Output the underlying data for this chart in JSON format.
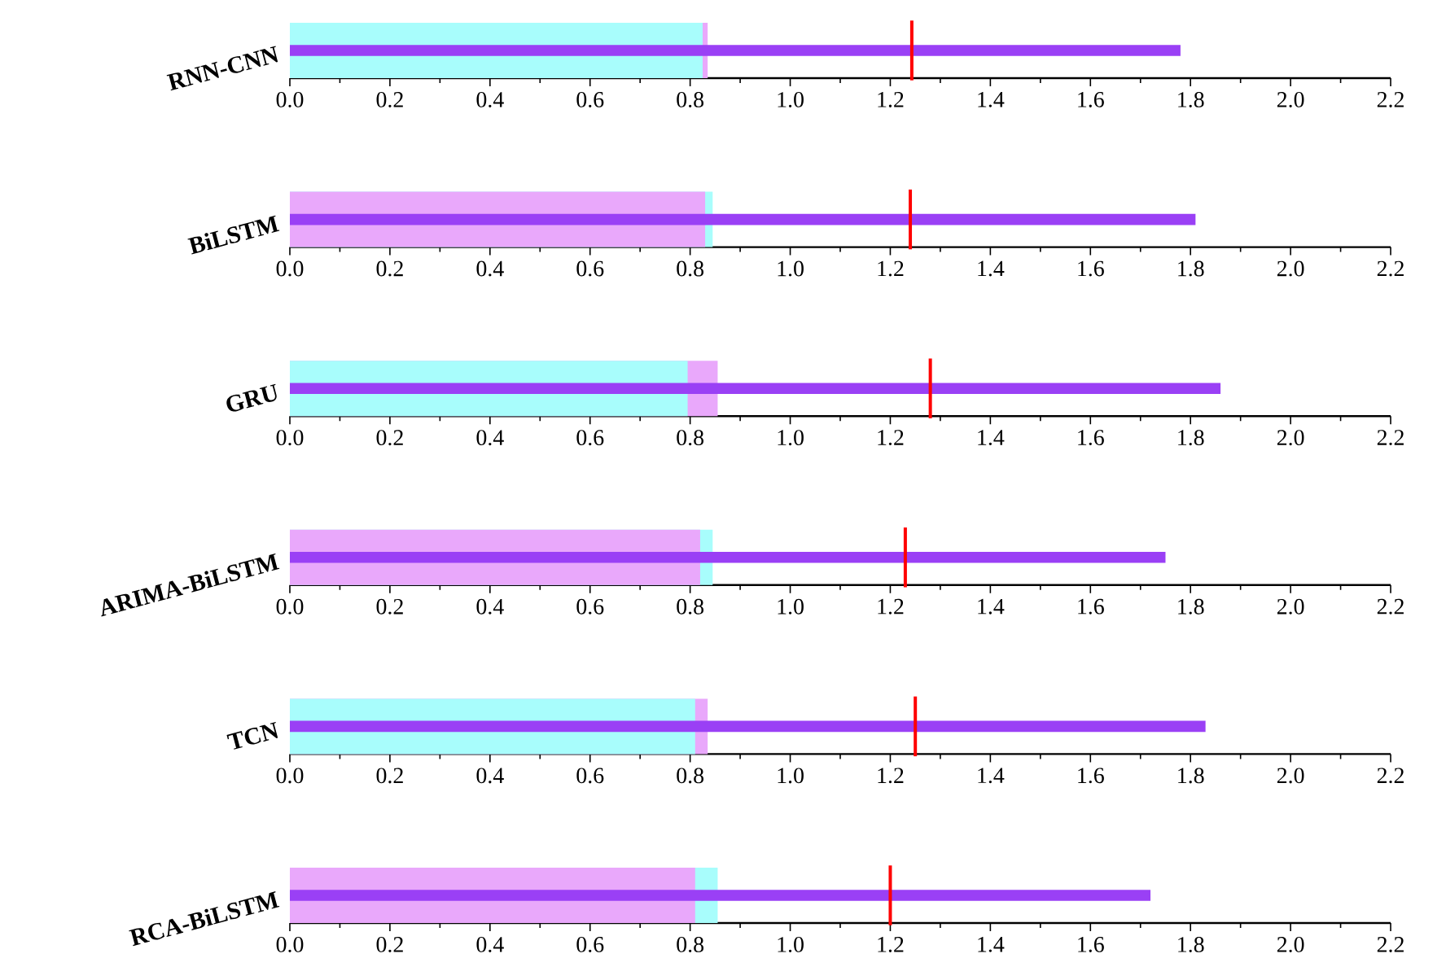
{
  "chart_data": [
    {
      "type": "bar",
      "orientation": "horizontal",
      "categories": [
        "RNN-CNN"
      ],
      "values": [
        1.78
      ],
      "color": "#9a40f5",
      "xlim": [
        0,
        2.2
      ],
      "xticks": [
        {
          "value": 0,
          "label": "0.0"
        },
        0.2,
        0.4,
        0.6,
        0.8,
        {
          "value": 1,
          "label": "1.0"
        },
        1.2,
        1.4,
        1.6,
        1.8,
        {
          "value": 2,
          "label": "2.0"
        },
        2.2
      ],
      "bands": [
        {
          "axis": "x",
          "from": 0,
          "to": 0.835,
          "color": "#e9a8fb"
        },
        {
          "axis": "x",
          "from": 0,
          "to": 0.825,
          "color": "#a8fdfc"
        }
      ],
      "ref_lines": [
        {
          "axis": "x",
          "value": 1.243,
          "color": "#ff0000"
        }
      ]
    },
    {
      "type": "bar",
      "orientation": "horizontal",
      "categories": [
        "BiLSTM"
      ],
      "values": [
        1.81
      ],
      "color": "#9a40f5",
      "xlim": [
        0,
        2.2
      ],
      "xticks": [
        {
          "value": 0,
          "label": "0.0"
        },
        0.2,
        0.4,
        0.6,
        0.8,
        {
          "value": 1,
          "label": "1.0"
        },
        1.2,
        1.4,
        1.6,
        1.8,
        {
          "value": 2,
          "label": "2.0"
        },
        2.2
      ],
      "bands": [
        {
          "axis": "x",
          "from": 0,
          "to": 0.845,
          "color": "#a8fdfc"
        },
        {
          "axis": "x",
          "from": 0,
          "to": 0.83,
          "color": "#e9a8fb"
        }
      ],
      "ref_lines": [
        {
          "axis": "x",
          "value": 1.24,
          "color": "#ff0000"
        }
      ]
    },
    {
      "type": "bar",
      "orientation": "horizontal",
      "categories": [
        "GRU"
      ],
      "values": [
        1.86
      ],
      "color": "#9a40f5",
      "xlim": [
        0,
        2.2
      ],
      "xticks": [
        {
          "value": 0,
          "label": "0.0"
        },
        0.2,
        0.4,
        0.6,
        0.8,
        {
          "value": 1,
          "label": "1.0"
        },
        1.2,
        1.4,
        1.6,
        1.8,
        {
          "value": 2,
          "label": "2.0"
        },
        2.2
      ],
      "bands": [
        {
          "axis": "x",
          "from": 0,
          "to": 0.855,
          "color": "#e9a8fb"
        },
        {
          "axis": "x",
          "from": 0,
          "to": 0.795,
          "color": "#a8fdfc"
        }
      ],
      "ref_lines": [
        {
          "axis": "x",
          "value": 1.28,
          "color": "#ff0000"
        }
      ]
    },
    {
      "type": "bar",
      "orientation": "horizontal",
      "categories": [
        "ARIMA-BiLSTM"
      ],
      "values": [
        1.75
      ],
      "color": "#9a40f5",
      "xlim": [
        0,
        2.2
      ],
      "xticks": [
        {
          "value": 0,
          "label": "0.0"
        },
        0.2,
        0.4,
        0.6,
        0.8,
        {
          "value": 1,
          "label": "1.0"
        },
        1.2,
        1.4,
        1.6,
        1.8,
        {
          "value": 2,
          "label": "2.0"
        },
        2.2
      ],
      "bands": [
        {
          "axis": "x",
          "from": 0,
          "to": 0.845,
          "color": "#a8fdfc"
        },
        {
          "axis": "x",
          "from": 0,
          "to": 0.82,
          "color": "#e9a8fb"
        }
      ],
      "ref_lines": [
        {
          "axis": "x",
          "value": 1.23,
          "color": "#ff0000"
        }
      ]
    },
    {
      "type": "bar",
      "orientation": "horizontal",
      "categories": [
        "TCN"
      ],
      "values": [
        1.83
      ],
      "color": "#9a40f5",
      "xlim": [
        0,
        2.2
      ],
      "xticks": [
        {
          "value": 0,
          "label": "0.0"
        },
        0.2,
        0.4,
        0.6,
        0.8,
        {
          "value": 1,
          "label": "1.0"
        },
        1.2,
        1.4,
        1.6,
        1.8,
        {
          "value": 2,
          "label": "2.0"
        },
        2.2
      ],
      "bands": [
        {
          "axis": "x",
          "from": 0,
          "to": 0.835,
          "color": "#e9a8fb"
        },
        {
          "axis": "x",
          "from": 0,
          "to": 0.81,
          "color": "#a8fdfc"
        }
      ],
      "ref_lines": [
        {
          "axis": "x",
          "value": 1.25,
          "color": "#ff0000"
        }
      ]
    },
    {
      "type": "bar",
      "orientation": "horizontal",
      "categories": [
        "RCA-BiLSTM"
      ],
      "values": [
        1.72
      ],
      "color": "#9a40f5",
      "xlim": [
        0,
        2.2
      ],
      "xticks": [
        {
          "value": 0,
          "label": "0.0"
        },
        0.2,
        0.4,
        0.6,
        0.8,
        {
          "value": 1,
          "label": "1.0"
        },
        1.2,
        1.4,
        1.6,
        1.8,
        {
          "value": 2,
          "label": "2.0"
        },
        2.2
      ],
      "bands": [
        {
          "axis": "x",
          "from": 0,
          "to": 0.855,
          "color": "#a8fdfc"
        },
        {
          "axis": "x",
          "from": 0,
          "to": 0.81,
          "color": "#e9a8fb"
        }
      ],
      "ref_lines": [
        {
          "axis": "x",
          "value": 1.2,
          "color": "#ff0000"
        }
      ]
    }
  ]
}
